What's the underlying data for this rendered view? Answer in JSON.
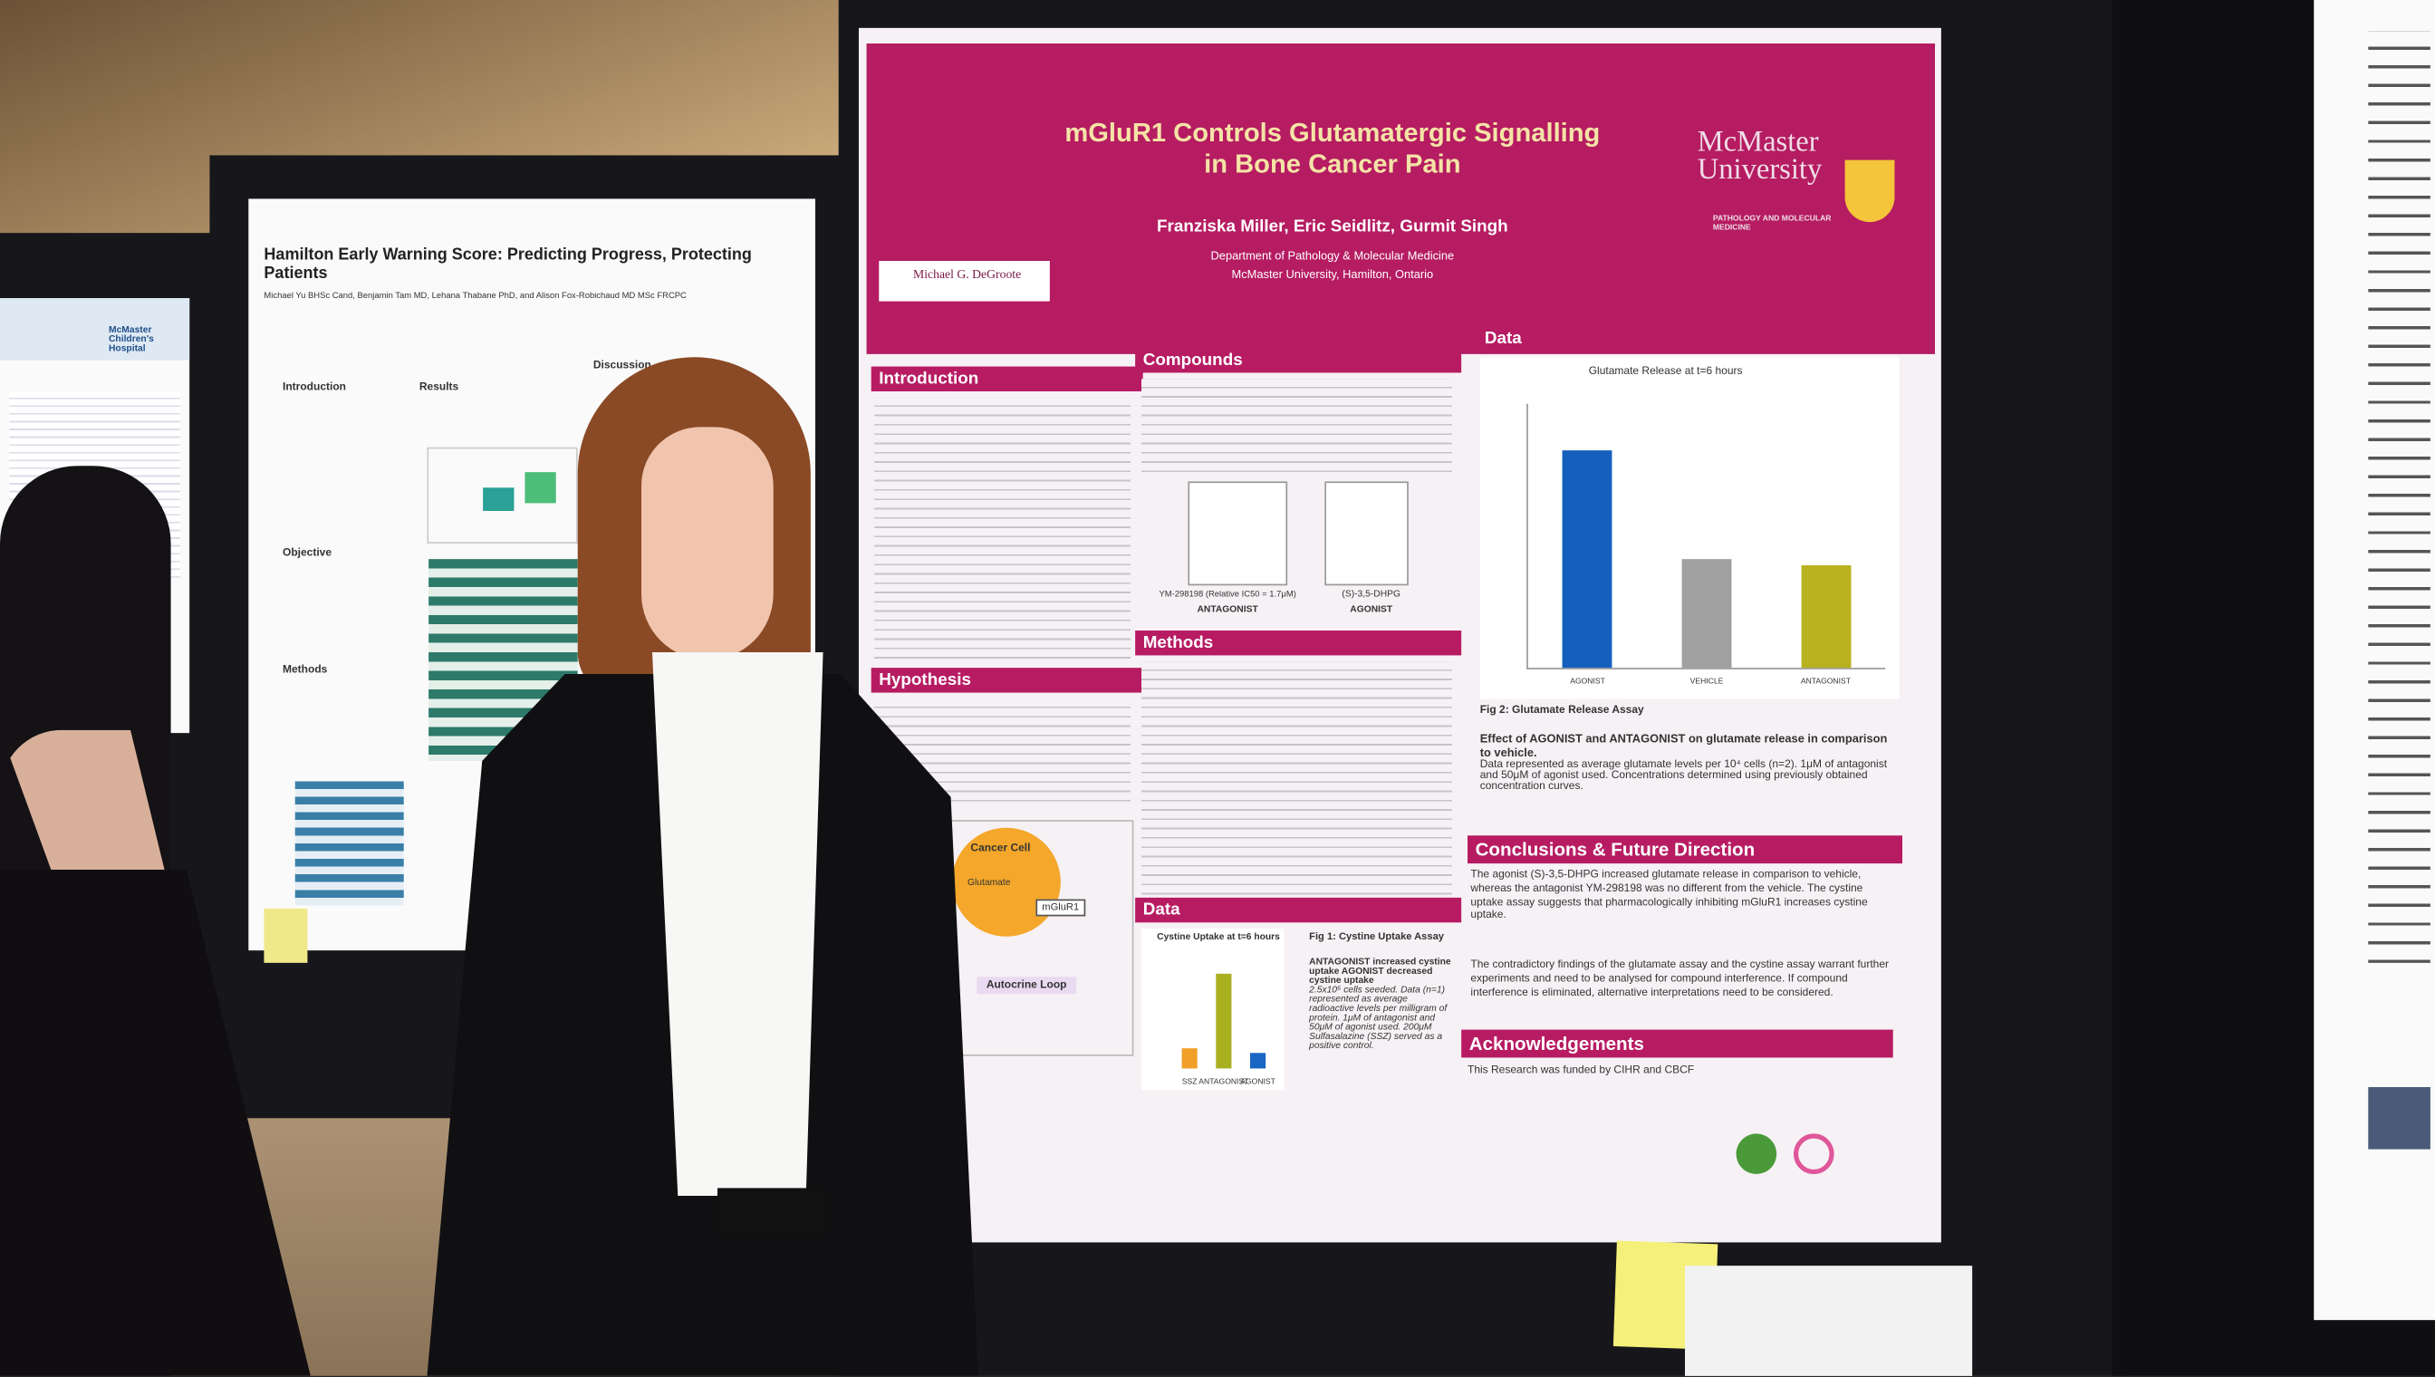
{
  "far_left_poster": {
    "logo": "McMaster Children's Hospital"
  },
  "left_poster": {
    "title": "Hamilton Early Warning Score: Predicting Progress, Protecting Patients",
    "authors": "Michael Yu BHSc Cand, Benjamin Tam MD, Lehana Thabane PhD, and Alison Fox-Robichaud MD MSc FRCPC",
    "sections": [
      "Introduction",
      "Results",
      "Objective",
      "Methods",
      "Discussion"
    ]
  },
  "main_poster": {
    "title": "mGluR1 Controls Glutamatergic Signalling in Bone Cancer Pain",
    "authors": "Franziska Miller, Eric Seidlitz, Gurmit Singh",
    "department": "Department of Pathology & Molecular Medicine",
    "institution": "McMaster University, Hamilton, Ontario",
    "logo": "McMaster University",
    "logo_sub": "PATHOLOGY AND MOLECULAR MEDICINE",
    "sponsor": "Michael G. DeGroote",
    "sections": {
      "introduction": "Introduction",
      "hypothesis": "Hypothesis",
      "compounds": "Compounds",
      "methods": "Methods",
      "data_1": "Data",
      "data_2": "Data",
      "conclusions": "Conclusions & Future Direction",
      "acknowledgements": "Acknowledgements"
    },
    "compounds": [
      {
        "name": "YM-298198 (Relative IC50 = 1.7μM)",
        "role": "ANTAGONIST"
      },
      {
        "name": "(S)-3,5-DHPG",
        "role": "AGONIST"
      }
    ],
    "diagram": {
      "cell": "Cancer Cell",
      "ligand": "Glutamate",
      "receptor": "mGluR1",
      "loop": "Autocrine Loop"
    },
    "figure_2": {
      "title": "Glutamate Release at t=6 hours",
      "categories": [
        "AGONIST",
        "VEHICLE",
        "ANTAGONIST"
      ],
      "values": [
        1.15,
        0.58,
        0.54
      ],
      "colors": [
        "#1560bd",
        "#a0a0a0",
        "#b9b21e"
      ],
      "ylim": [
        0,
        1.4
      ],
      "caption": "Fig 2:  Glutamate Release Assay",
      "caption_bold": "Effect of AGONIST and ANTAGONIST on glutamate release in comparison to vehicle.",
      "caption_text": "Data represented as average glutamate levels per 10⁴ cells (n=2). 1μM of antagonist and 50μM of agonist used. Concentrations determined using previously obtained concentration curves."
    },
    "figure_1": {
      "title": "Cystine Uptake at t=6 hours",
      "categories": [
        "SSZ",
        "ANTAGONIST",
        "AGONIST"
      ],
      "values": [
        10,
        48,
        8
      ],
      "colors": [
        "#f0a028",
        "#a9b020",
        "#1a66c4"
      ],
      "ylim": [
        0,
        55
      ],
      "caption": "Fig 1:  Cystine Uptake Assay",
      "caption_bold": "ANTAGONIST increased cystine uptake AGONIST decreased cystine uptake",
      "caption_text": "2.5x10⁵ cells seeded. Data (n=1) represented as average radioactive levels per milligram of protein. 1μM of antagonist and 50μM of agonist used. 200μM Sulfasalazine (SSZ) served as a positive control."
    },
    "conclusions": [
      "The agonist (S)-3,5-DHPG increased glutamate release in comparison to vehicle, whereas the antagonist YM-298198 was no different from the vehicle. The cystine uptake assay suggests that pharmacologically inhibiting mGluR1 increases cystine uptake.",
      "The contradictory findings of the glutamate assay and the cystine assay warrant further experiments and need to be analysed for compound interference. If compound interference is eliminated, alternative interpretations need to be considered."
    ],
    "acknowledgements": "This Research was funded by CIHR and CBCF"
  }
}
